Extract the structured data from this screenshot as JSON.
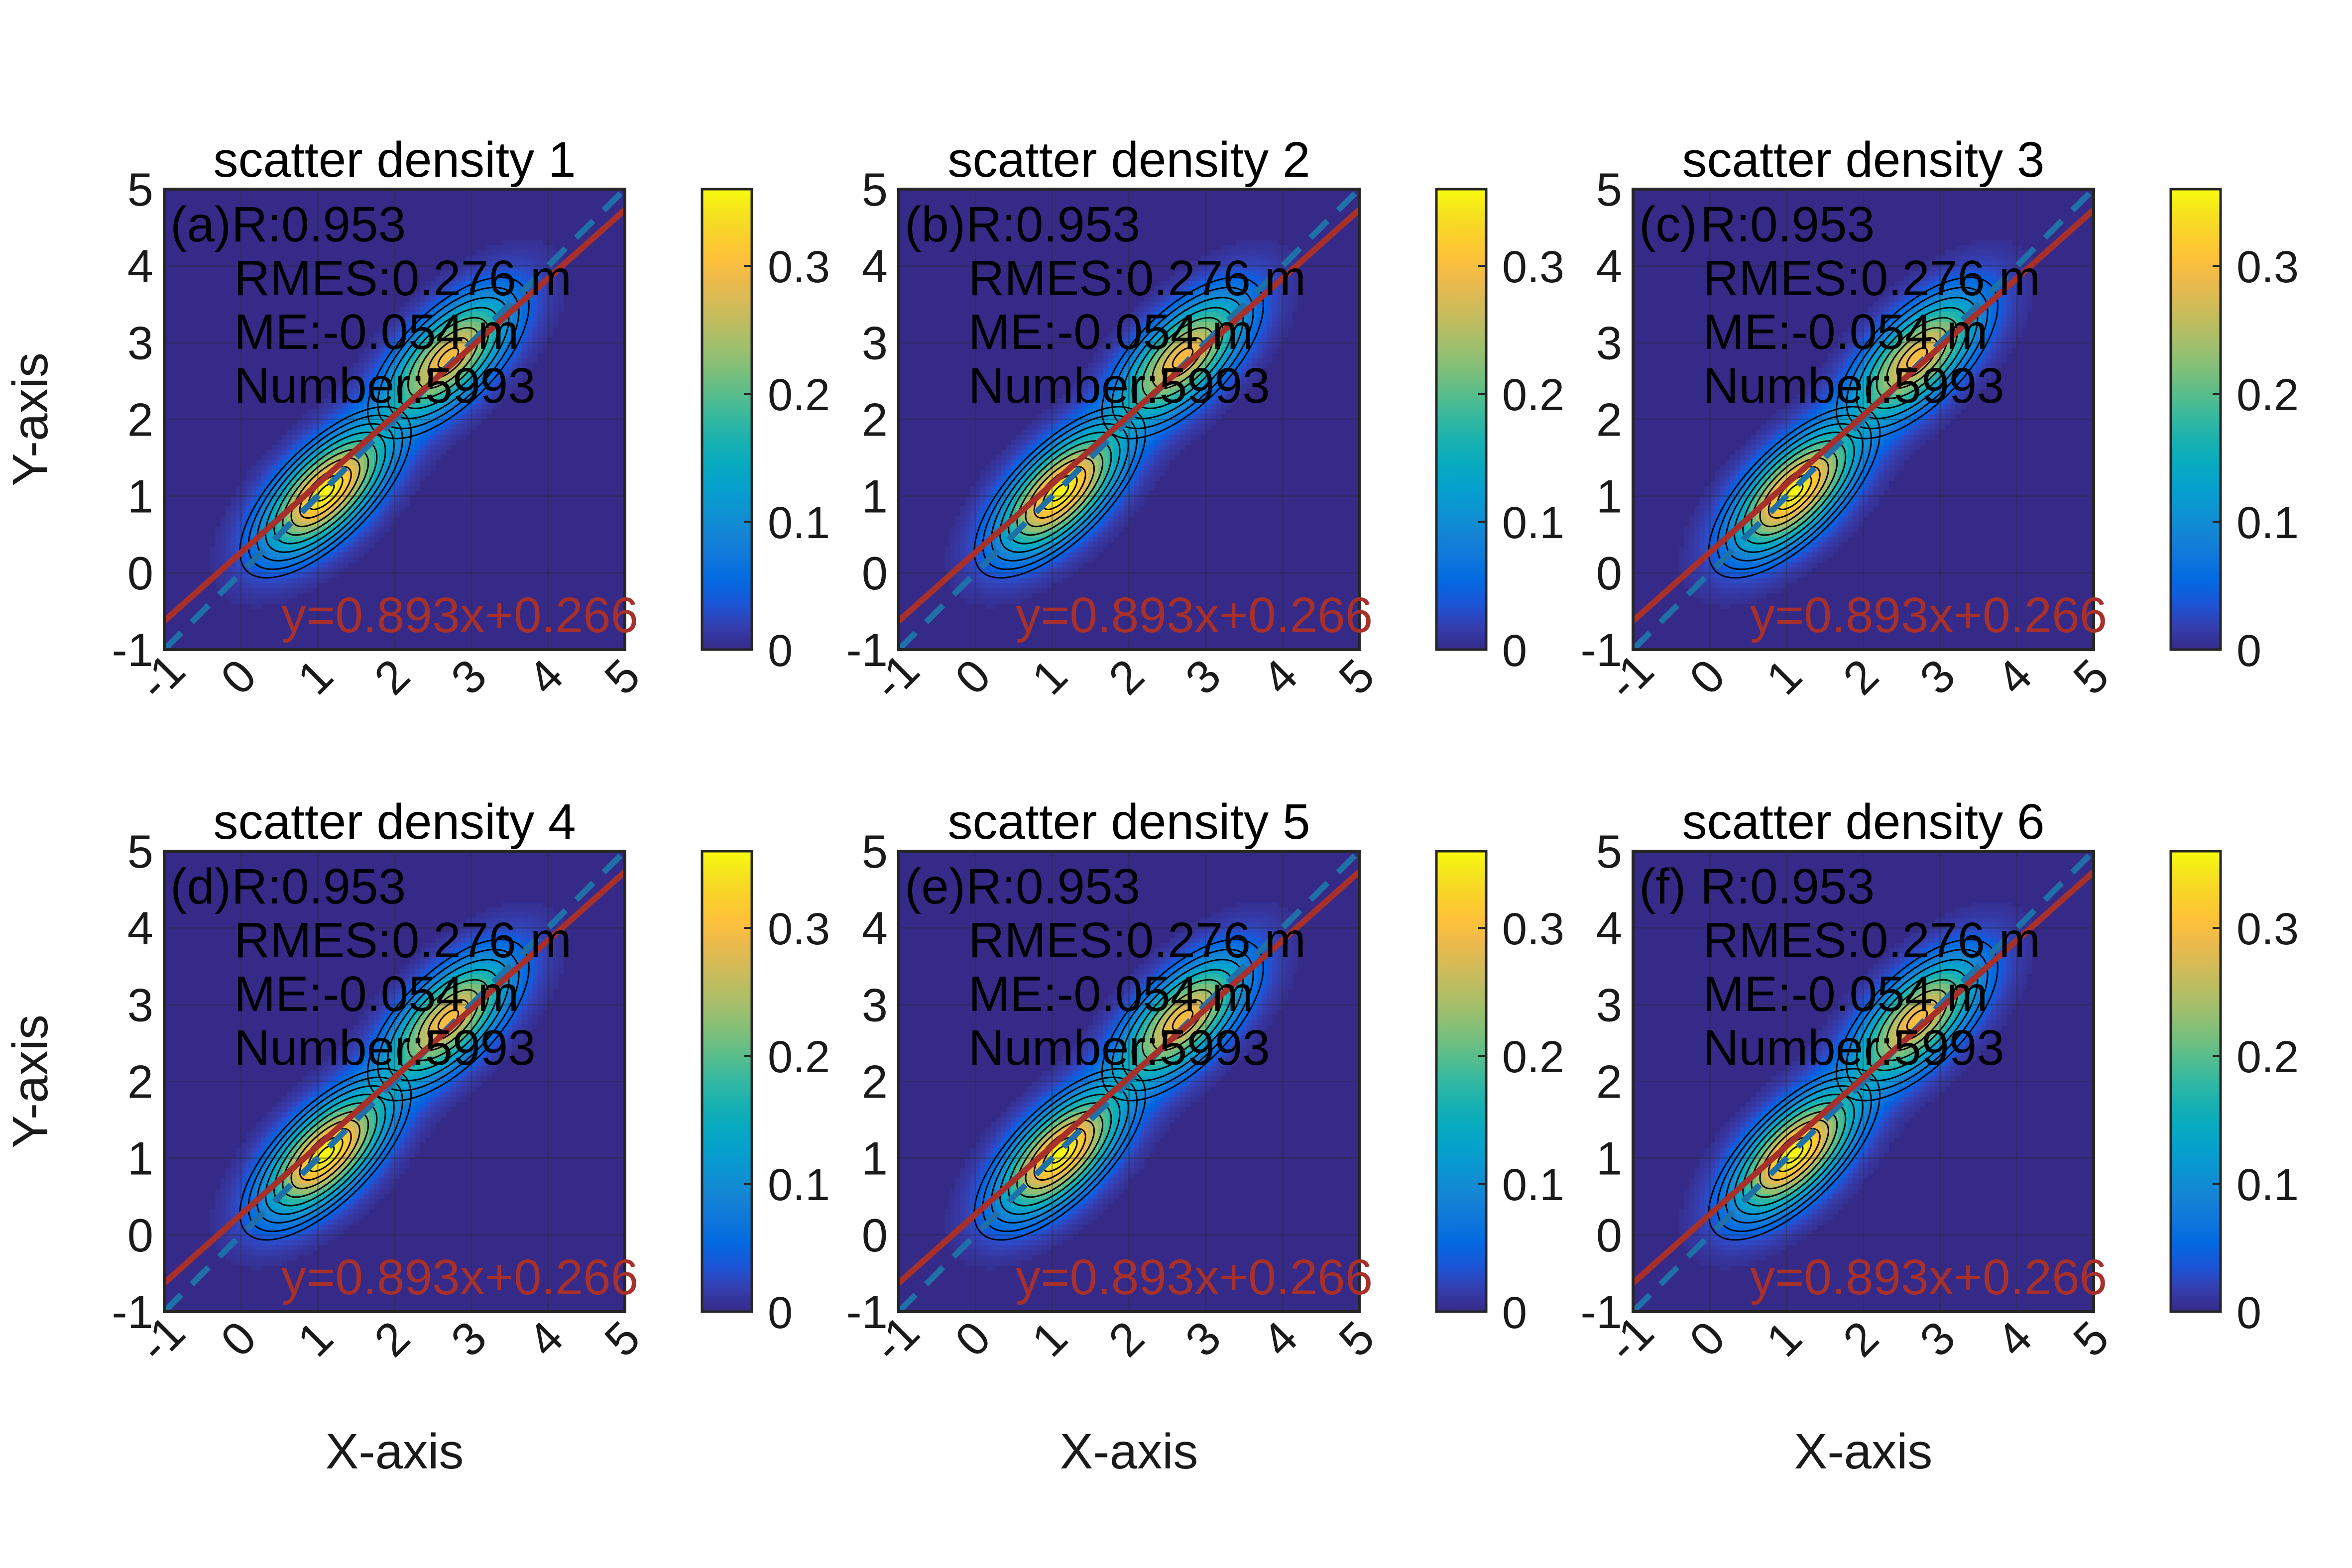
{
  "figure": {
    "background": "#ffffff"
  },
  "chart_data": [
    {
      "type": "heatmap",
      "panel_label": "(a)",
      "title": "scatter density 1",
      "xlabel": "",
      "ylabel": "Y-axis",
      "xlim": [
        -1,
        5
      ],
      "ylim": [
        -1,
        5
      ],
      "xticks": [
        "-1",
        "0",
        "1",
        "2",
        "3",
        "4",
        "5"
      ],
      "yticks": [
        "-1",
        "0",
        "1",
        "2",
        "3",
        "4",
        "5"
      ],
      "stats": [
        "R:0.953",
        "RMES:0.276 m",
        "ME:-0.054 m",
        "Number:5993"
      ],
      "fit": {
        "slope": 0.893,
        "intercept": 0.266,
        "label": "y=0.893x+0.266",
        "color": "#a8302a"
      },
      "reference_line": {
        "slope": 1,
        "intercept": 0,
        "style": "dashed",
        "color": "#1f6fa8"
      },
      "density_peaks": [
        {
          "x": 1.1,
          "y": 1.05,
          "value": 0.36
        },
        {
          "x": 2.7,
          "y": 2.8,
          "value": 0.3
        }
      ],
      "colorbar": {
        "min": 0,
        "max": 0.36,
        "ticks": [
          "0",
          "0.1",
          "0.2",
          "0.3"
        ],
        "colormap": "parula"
      }
    },
    {
      "type": "heatmap",
      "panel_label": "(b)",
      "title": "scatter density 2",
      "xlabel": "",
      "ylabel": "",
      "xlim": [
        -1,
        5
      ],
      "ylim": [
        -1,
        5
      ],
      "xticks": [
        "-1",
        "0",
        "1",
        "2",
        "3",
        "4",
        "5"
      ],
      "yticks": [
        "-1",
        "0",
        "1",
        "2",
        "3",
        "4",
        "5"
      ],
      "stats": [
        "R:0.953",
        "RMES:0.276 m",
        "ME:-0.054 m",
        "Number:5993"
      ],
      "fit": {
        "slope": 0.893,
        "intercept": 0.266,
        "label": "y=0.893x+0.266",
        "color": "#a8302a"
      },
      "reference_line": {
        "slope": 1,
        "intercept": 0,
        "style": "dashed",
        "color": "#1f6fa8"
      },
      "density_peaks": [
        {
          "x": 1.1,
          "y": 1.05,
          "value": 0.36
        },
        {
          "x": 2.7,
          "y": 2.8,
          "value": 0.3
        }
      ],
      "colorbar": {
        "min": 0,
        "max": 0.36,
        "ticks": [
          "0",
          "0.1",
          "0.2",
          "0.3"
        ],
        "colormap": "parula"
      }
    },
    {
      "type": "heatmap",
      "panel_label": "(c)",
      "title": "scatter density 3",
      "xlabel": "",
      "ylabel": "",
      "xlim": [
        -1,
        5
      ],
      "ylim": [
        -1,
        5
      ],
      "xticks": [
        "-1",
        "0",
        "1",
        "2",
        "3",
        "4",
        "5"
      ],
      "yticks": [
        "-1",
        "0",
        "1",
        "2",
        "3",
        "4",
        "5"
      ],
      "stats": [
        "R:0.953",
        "RMES:0.276 m",
        "ME:-0.054 m",
        "Number:5993"
      ],
      "fit": {
        "slope": 0.893,
        "intercept": 0.266,
        "label": "y=0.893x+0.266",
        "color": "#a8302a"
      },
      "reference_line": {
        "slope": 1,
        "intercept": 0,
        "style": "dashed",
        "color": "#1f6fa8"
      },
      "density_peaks": [
        {
          "x": 1.1,
          "y": 1.05,
          "value": 0.36
        },
        {
          "x": 2.7,
          "y": 2.8,
          "value": 0.3
        }
      ],
      "colorbar": {
        "min": 0,
        "max": 0.36,
        "ticks": [
          "0",
          "0.1",
          "0.2",
          "0.3"
        ],
        "colormap": "parula"
      }
    },
    {
      "type": "heatmap",
      "panel_label": "(d)",
      "title": "scatter density 4",
      "xlabel": "X-axis",
      "ylabel": "Y-axis",
      "xlim": [
        -1,
        5
      ],
      "ylim": [
        -1,
        5
      ],
      "xticks": [
        "-1",
        "0",
        "1",
        "2",
        "3",
        "4",
        "5"
      ],
      "yticks": [
        "-1",
        "0",
        "1",
        "2",
        "3",
        "4",
        "5"
      ],
      "stats": [
        "R:0.953",
        "RMES:0.276 m",
        "ME:-0.054 m",
        "Number:5993"
      ],
      "fit": {
        "slope": 0.893,
        "intercept": 0.266,
        "label": "y=0.893x+0.266",
        "color": "#a8302a"
      },
      "reference_line": {
        "slope": 1,
        "intercept": 0,
        "style": "dashed",
        "color": "#1f6fa8"
      },
      "density_peaks": [
        {
          "x": 1.1,
          "y": 1.05,
          "value": 0.36
        },
        {
          "x": 2.7,
          "y": 2.8,
          "value": 0.3
        }
      ],
      "colorbar": {
        "min": 0,
        "max": 0.36,
        "ticks": [
          "0",
          "0.1",
          "0.2",
          "0.3"
        ],
        "colormap": "parula"
      }
    },
    {
      "type": "heatmap",
      "panel_label": "(e)",
      "title": "scatter density 5",
      "xlabel": "X-axis",
      "ylabel": "",
      "xlim": [
        -1,
        5
      ],
      "ylim": [
        -1,
        5
      ],
      "xticks": [
        "-1",
        "0",
        "1",
        "2",
        "3",
        "4",
        "5"
      ],
      "yticks": [
        "-1",
        "0",
        "1",
        "2",
        "3",
        "4",
        "5"
      ],
      "stats": [
        "R:0.953",
        "RMES:0.276 m",
        "ME:-0.054 m",
        "Number:5993"
      ],
      "fit": {
        "slope": 0.893,
        "intercept": 0.266,
        "label": "y=0.893x+0.266",
        "color": "#a8302a"
      },
      "reference_line": {
        "slope": 1,
        "intercept": 0,
        "style": "dashed",
        "color": "#1f6fa8"
      },
      "density_peaks": [
        {
          "x": 1.1,
          "y": 1.05,
          "value": 0.36
        },
        {
          "x": 2.7,
          "y": 2.8,
          "value": 0.3
        }
      ],
      "colorbar": {
        "min": 0,
        "max": 0.36,
        "ticks": [
          "0",
          "0.1",
          "0.2",
          "0.3"
        ],
        "colormap": "parula"
      }
    },
    {
      "type": "heatmap",
      "panel_label": "(f)",
      "title": "scatter density 6",
      "xlabel": "X-axis",
      "ylabel": "",
      "xlim": [
        -1,
        5
      ],
      "ylim": [
        -1,
        5
      ],
      "xticks": [
        "-1",
        "0",
        "1",
        "2",
        "3",
        "4",
        "5"
      ],
      "yticks": [
        "-1",
        "0",
        "1",
        "2",
        "3",
        "4",
        "5"
      ],
      "stats": [
        "R:0.953",
        "RMES:0.276 m",
        "ME:-0.054 m",
        "Number:5993"
      ],
      "fit": {
        "slope": 0.893,
        "intercept": 0.266,
        "label": "y=0.893x+0.266",
        "color": "#a8302a"
      },
      "reference_line": {
        "slope": 1,
        "intercept": 0,
        "style": "dashed",
        "color": "#1f6fa8"
      },
      "density_peaks": [
        {
          "x": 1.1,
          "y": 1.05,
          "value": 0.36
        },
        {
          "x": 2.7,
          "y": 2.8,
          "value": 0.3
        }
      ],
      "colorbar": {
        "min": 0,
        "max": 0.36,
        "ticks": [
          "0",
          "0.1",
          "0.2",
          "0.3"
        ],
        "colormap": "parula"
      }
    }
  ]
}
